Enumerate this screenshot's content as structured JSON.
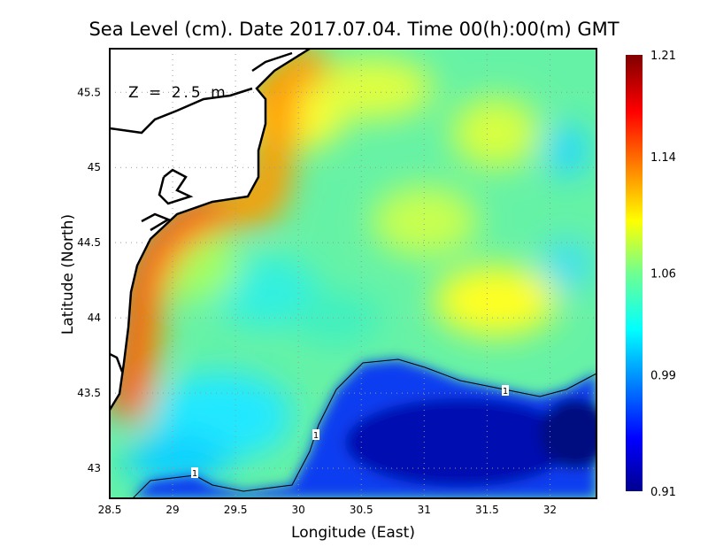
{
  "chart_data": {
    "type": "heatmap",
    "title": "Sea Level (cm). Date 2017.07.04. Time 00(h):00(m) GMT",
    "xlabel": "Longitude (East)",
    "ylabel": "Latitude (North)",
    "xlim": [
      28.5,
      32.37
    ],
    "ylim": [
      42.8,
      45.79
    ],
    "xticks": [
      "28.5",
      "29",
      "29.5",
      "30",
      "30.5",
      "31",
      "31.5",
      "32"
    ],
    "xtick_values": [
      28.5,
      29,
      29.5,
      30,
      30.5,
      31,
      31.5,
      32
    ],
    "yticks": [
      "43",
      "43.5",
      "44",
      "44.5",
      "45",
      "45.5"
    ],
    "ytick_values": [
      43,
      43.5,
      44,
      44.5,
      45,
      45.5
    ],
    "grid": true,
    "annotation": "Z = 2.5 m",
    "contour_level": "1",
    "contour_labels": [
      "1",
      "1",
      "1"
    ],
    "colorbar": {
      "min": 0.91,
      "max": 1.21,
      "ticks": [
        "1.21",
        "1.14",
        "1.06",
        "0.99",
        "0.91"
      ],
      "tick_values": [
        1.21,
        1.14,
        1.06,
        0.99,
        0.91
      ],
      "colormap": "jet",
      "placement": "right"
    }
  }
}
